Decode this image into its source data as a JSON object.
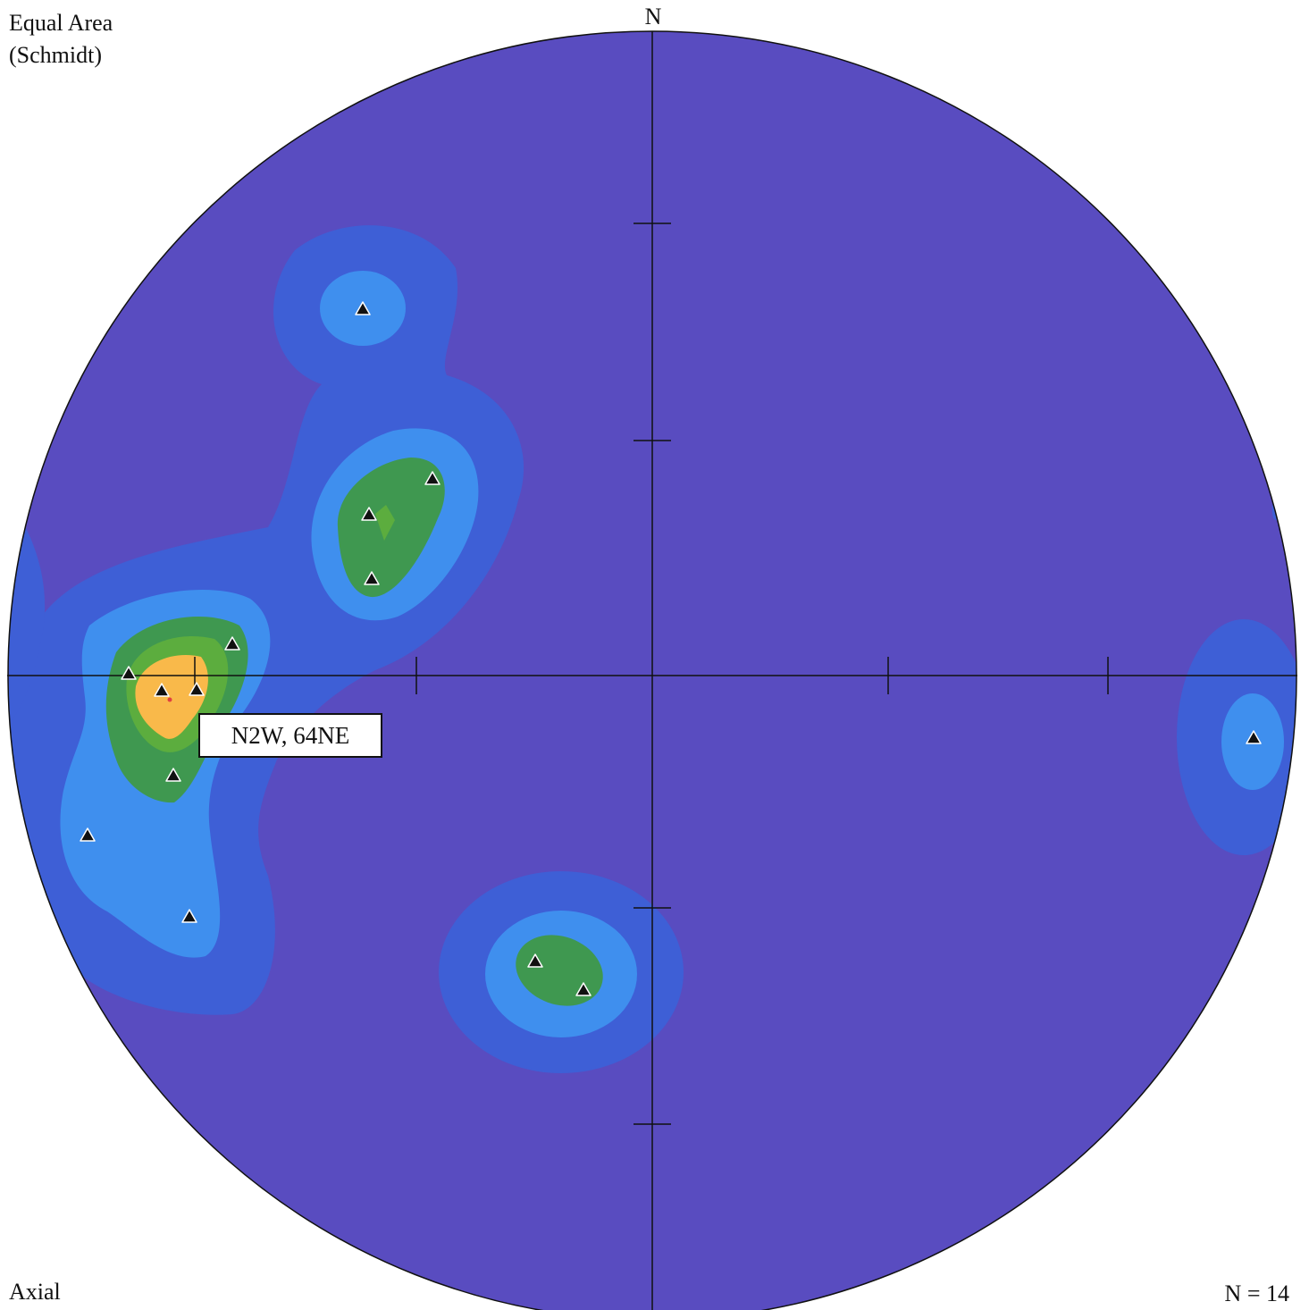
{
  "header": {
    "projection": "Equal Area",
    "projection_type": "(Schmidt)",
    "north_label": "N"
  },
  "footer": {
    "data_type": "Axial",
    "count": "N = 14"
  },
  "callout": {
    "text": "N2W, 64NE"
  },
  "colors": {
    "background_level": "#594cc0",
    "contour_level_1": "#3e5fd6",
    "contour_level_2": "#3f8fee",
    "contour_level_3": "#3f9850",
    "contour_level_4": "#5cad3e",
    "contour_level_5": "#f9b94a",
    "marker": "#111111",
    "grid": "#111111"
  },
  "icons": {
    "data_point": "triangle-marker-icon"
  }
}
